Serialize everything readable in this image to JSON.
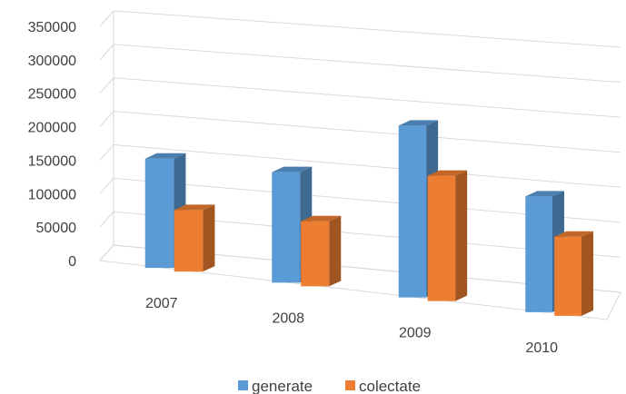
{
  "chart_data": {
    "type": "bar",
    "title": "",
    "xlabel": "",
    "ylabel": "",
    "categories": [
      "2007",
      "2008",
      "2009",
      "2010"
    ],
    "series": [
      {
        "name": "generate",
        "values": [
          160000,
          158000,
          240000,
          158000
        ],
        "color": "#5B9BD5"
      },
      {
        "name": "colectate",
        "values": [
          90000,
          93000,
          175000,
          108000
        ],
        "color": "#ED7D31"
      }
    ],
    "ylim": [
      0,
      350000
    ],
    "yticks": [
      "0",
      "50000",
      "100000",
      "150000",
      "200000",
      "250000",
      "300000",
      "350000"
    ],
    "grid": true,
    "legend_position": "bottom",
    "style": "3d-perspective-column"
  }
}
